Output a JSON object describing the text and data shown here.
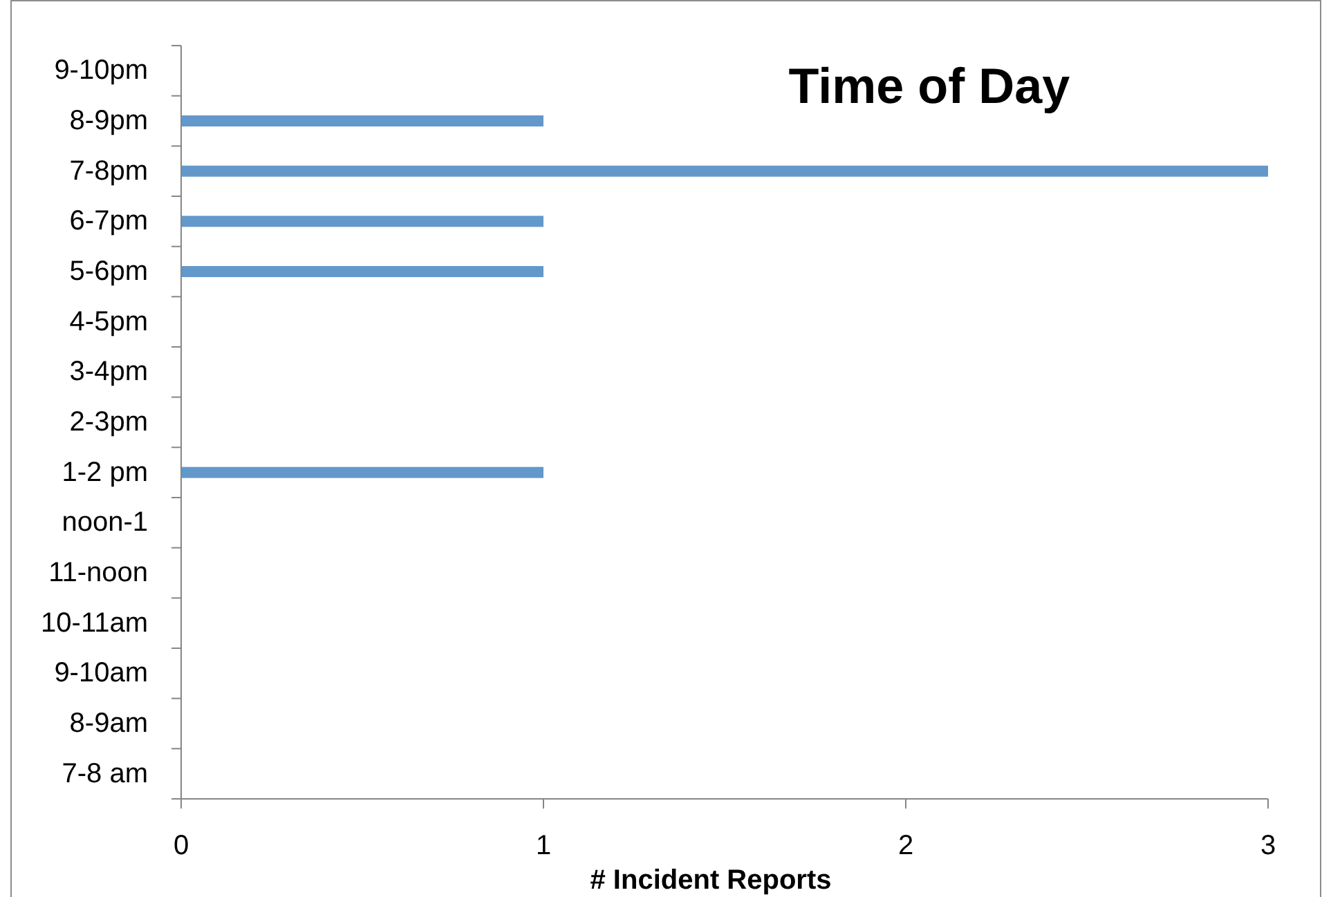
{
  "chart_data": {
    "type": "bar",
    "orientation": "horizontal",
    "title": "Time of Day",
    "xlabel": "# Incident Reports",
    "categories": [
      "9-10pm",
      "8-9pm",
      "7-8pm",
      "6-7pm",
      "5-6pm",
      "4-5pm",
      "3-4pm",
      "2-3pm",
      "1-2 pm",
      "noon-1",
      "11-noon",
      "10-11am",
      "9-10am",
      "8-9am",
      "7-8 am"
    ],
    "values": [
      0,
      1,
      3,
      1,
      1,
      0,
      0,
      0,
      1,
      0,
      0,
      0,
      0,
      0,
      0
    ],
    "color": "#6398cb",
    "xlim": [
      0,
      3
    ],
    "xticks": [
      0,
      1,
      2,
      3
    ]
  }
}
